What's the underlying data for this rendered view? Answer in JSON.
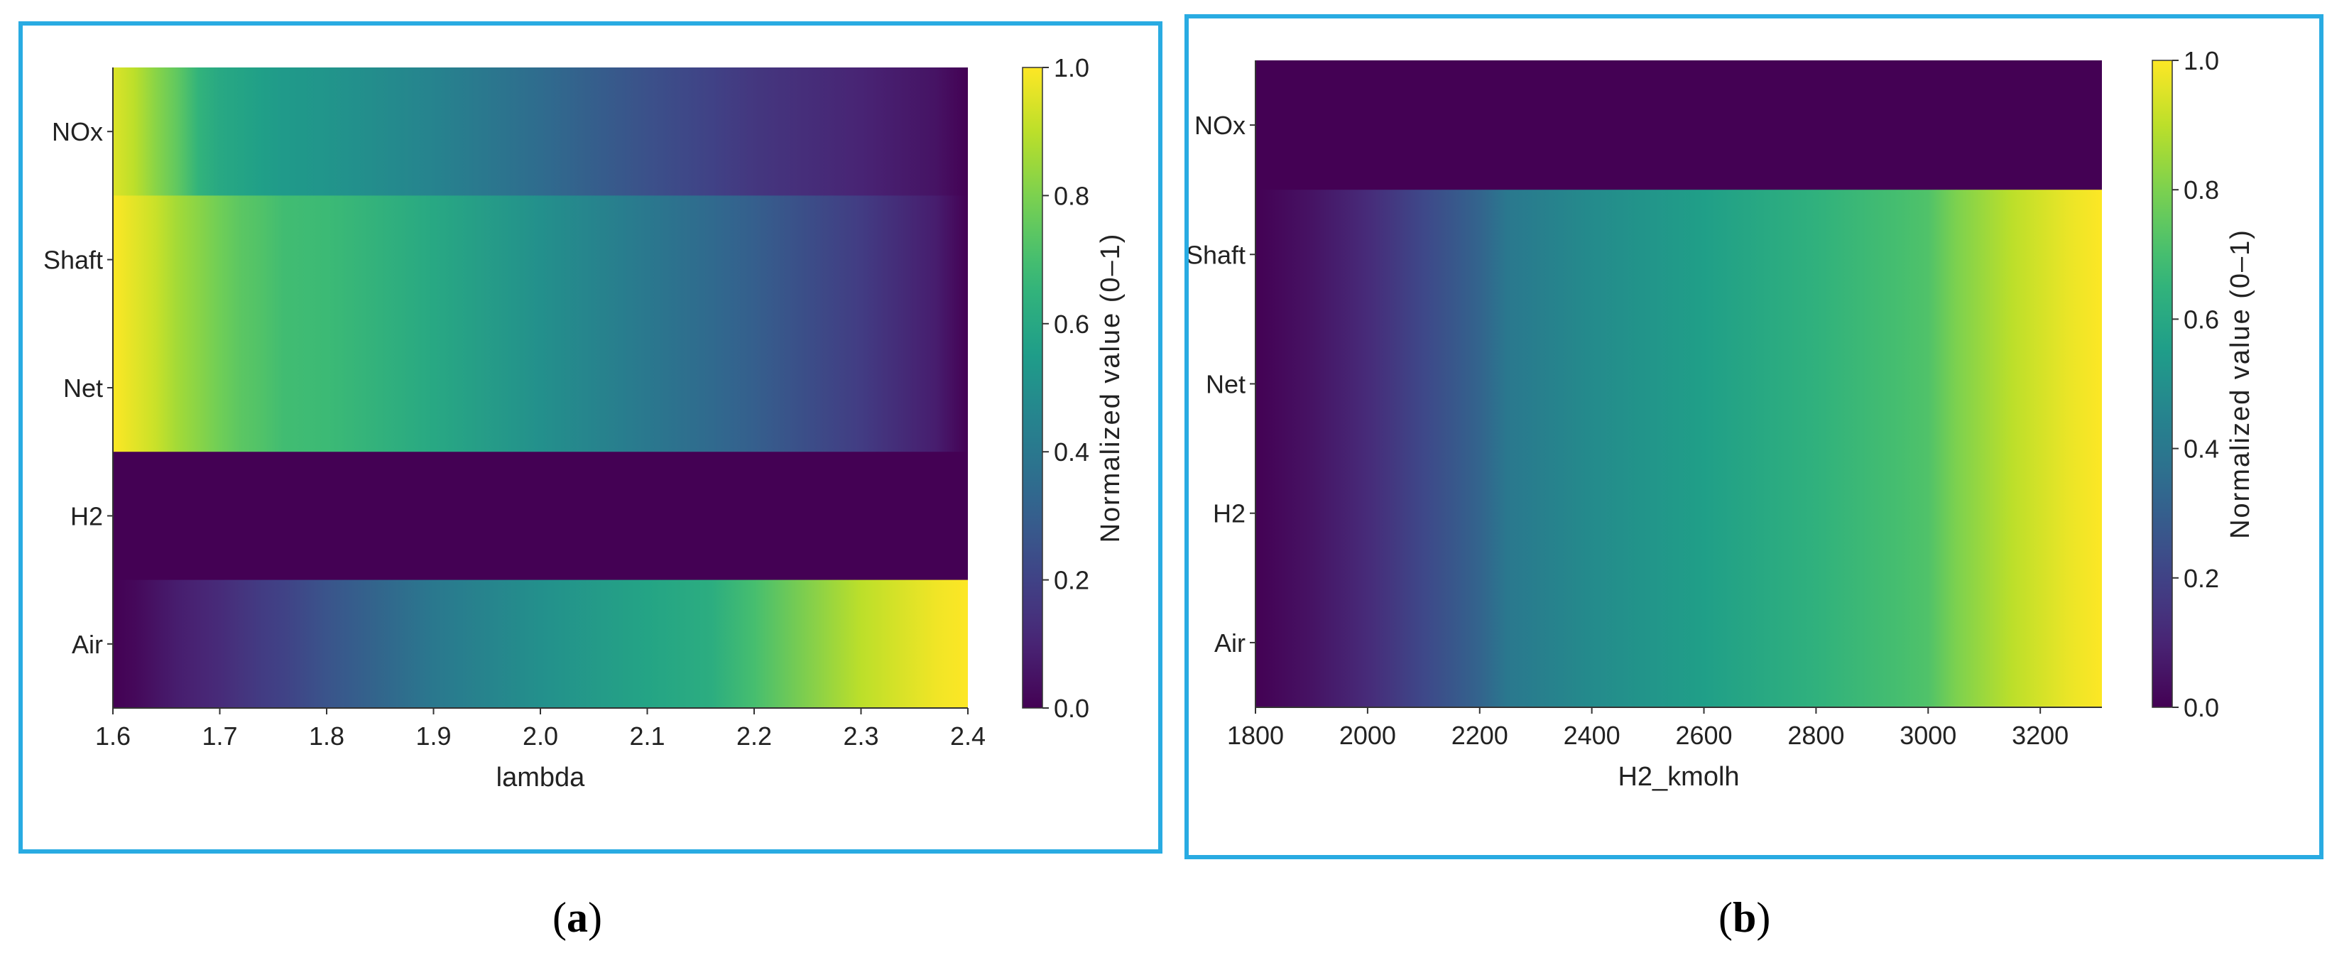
{
  "colors": {
    "panel_border": "#29abe2",
    "viridis": [
      "#440154",
      "#482878",
      "#3e4989",
      "#31688e",
      "#26828e",
      "#1f9e89",
      "#35b779",
      "#6ece58",
      "#b5de2b",
      "#fde725"
    ]
  },
  "chart_data": [
    {
      "type": "heatmap",
      "panel": "a",
      "caption_letter": "a",
      "xlabel": "lambda",
      "ylabel": "",
      "colorbar_label": "Normalized value (0–1)",
      "xlim": [
        1.6,
        2.4
      ],
      "x_ticks": [
        "1.6",
        "1.7",
        "1.8",
        "1.9",
        "2.0",
        "2.1",
        "2.2",
        "2.3",
        "2.4"
      ],
      "colorbar_ticks": [
        "0.0",
        "0.2",
        "0.4",
        "0.6",
        "0.8",
        "1.0"
      ],
      "colorbar_range": [
        0.0,
        1.0
      ],
      "rows": [
        "NOx",
        "Shaft",
        "Net",
        "H2",
        "Air"
      ],
      "x": [
        1.6,
        1.62,
        1.64,
        1.66,
        1.68,
        1.7,
        1.72,
        1.74,
        1.76,
        1.8,
        1.9,
        2.0,
        2.1,
        2.16,
        2.2,
        2.3,
        2.37,
        2.4
      ],
      "values": {
        "NOx": [
          0.95,
          0.9,
          0.82,
          0.75,
          0.65,
          0.6,
          0.58,
          0.56,
          0.54,
          0.52,
          0.45,
          0.35,
          0.25,
          0.2,
          0.16,
          0.1,
          0.05,
          0.0
        ],
        "Shaft": [
          1.0,
          0.96,
          0.92,
          0.86,
          0.82,
          0.78,
          0.74,
          0.72,
          0.69,
          0.68,
          0.6,
          0.5,
          0.4,
          0.34,
          0.3,
          0.18,
          0.08,
          0.0
        ],
        "Net": [
          1.0,
          0.96,
          0.92,
          0.86,
          0.82,
          0.78,
          0.74,
          0.72,
          0.69,
          0.68,
          0.6,
          0.5,
          0.4,
          0.34,
          0.3,
          0.18,
          0.08,
          0.0
        ],
        "H2": [
          0.0,
          0.0,
          0.0,
          0.0,
          0.0,
          0.0,
          0.0,
          0.0,
          0.0,
          0.0,
          0.0,
          0.0,
          0.0,
          0.0,
          0.0,
          0.0,
          0.0,
          0.0
        ],
        "Air": [
          0.0,
          0.02,
          0.05,
          0.08,
          0.1,
          0.12,
          0.15,
          0.18,
          0.2,
          0.26,
          0.4,
          0.5,
          0.58,
          0.62,
          0.7,
          0.9,
          0.98,
          1.0
        ]
      }
    },
    {
      "type": "heatmap",
      "panel": "b",
      "caption_letter": "b",
      "xlabel": "H2_kmolh",
      "ylabel": "",
      "colorbar_label": "Normalized value (0–1)",
      "xlim": [
        1800,
        3310
      ],
      "x_ticks": [
        "1800",
        "2000",
        "2200",
        "2400",
        "2600",
        "2800",
        "3000",
        "3200"
      ],
      "x_tick_values": [
        1800,
        2000,
        2200,
        2400,
        2600,
        2800,
        3000,
        3200
      ],
      "colorbar_ticks": [
        "0.0",
        "0.2",
        "0.4",
        "0.6",
        "0.8",
        "1.0"
      ],
      "colorbar_range": [
        0.0,
        1.0
      ],
      "rows": [
        "NOx",
        "Shaft",
        "Net",
        "H2",
        "Air"
      ],
      "x": [
        1800,
        1900,
        2000,
        2100,
        2200,
        2250,
        2400,
        2600,
        2800,
        2950,
        3000,
        3050,
        3150,
        3250,
        3310
      ],
      "values": {
        "NOx": [
          0.0,
          0.0,
          0.0,
          0.0,
          0.0,
          0.0,
          0.0,
          0.0,
          0.0,
          0.0,
          0.0,
          0.0,
          0.0,
          0.0,
          0.0
        ],
        "Shaft": [
          0.0,
          0.05,
          0.12,
          0.22,
          0.32,
          0.4,
          0.48,
          0.56,
          0.64,
          0.7,
          0.72,
          0.8,
          0.9,
          0.97,
          1.0
        ],
        "Net": [
          0.0,
          0.05,
          0.12,
          0.22,
          0.32,
          0.4,
          0.48,
          0.56,
          0.64,
          0.7,
          0.72,
          0.8,
          0.9,
          0.97,
          1.0
        ],
        "H2": [
          0.0,
          0.05,
          0.12,
          0.22,
          0.32,
          0.4,
          0.48,
          0.56,
          0.64,
          0.7,
          0.72,
          0.8,
          0.9,
          0.97,
          1.0
        ],
        "Air": [
          0.0,
          0.05,
          0.12,
          0.22,
          0.32,
          0.4,
          0.48,
          0.56,
          0.64,
          0.7,
          0.72,
          0.8,
          0.9,
          0.97,
          1.0
        ]
      }
    }
  ]
}
